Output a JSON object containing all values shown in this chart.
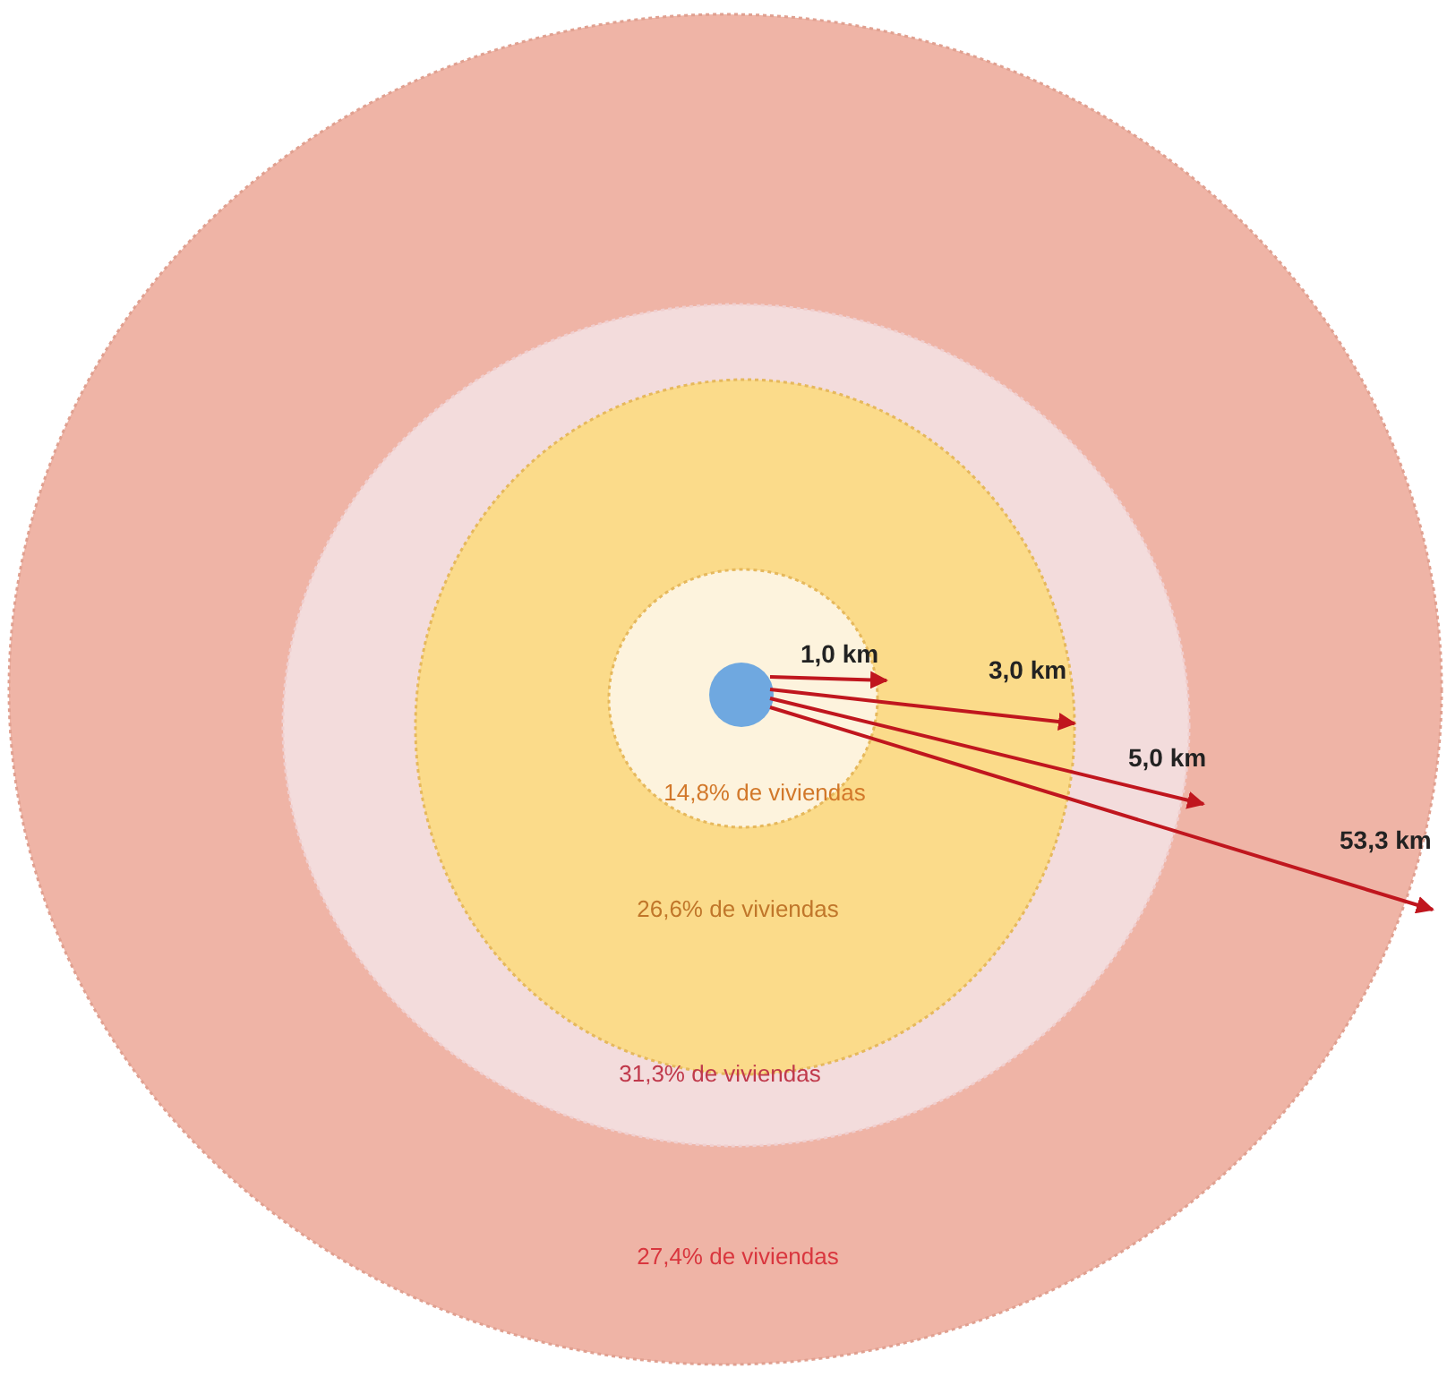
{
  "chart_data": {
    "type": "other",
    "categories": [
      null,
      null,
      null,
      null
    ],
    "values": [
      14.8,
      26.6,
      31.3,
      27.4
    ],
    "value_labels": [
      "14,8% de viviendas",
      "26,6% de viviendas",
      "31,3% de viviendas",
      "27,4% de viviendas"
    ],
    "colors": [
      "#fdf3dd",
      "#fbdb8a",
      "#f3dcdc",
      "#efb4a6"
    ],
    "annotations": [
      "1,0 km",
      "3,0 km",
      "5,0 km",
      "53,3 km"
    ]
  }
}
